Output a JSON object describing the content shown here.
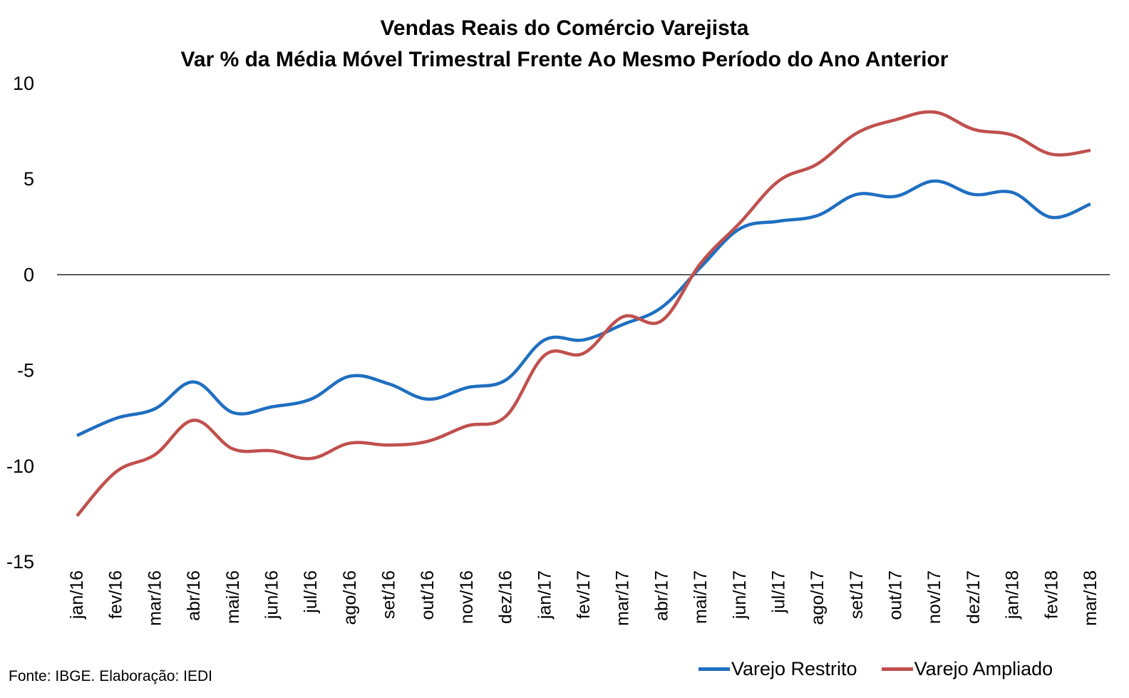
{
  "chart_data": {
    "type": "line",
    "title": "Vendas Reais do Comércio Varejista",
    "subtitle": "Var % da Média Móvel Trimestral Frente Ao Mesmo Período do Ano Anterior",
    "categories": [
      "jan/16",
      "fev/16",
      "mar/16",
      "abr/16",
      "mai/16",
      "jun/16",
      "jul/16",
      "ago/16",
      "set/16",
      "out/16",
      "nov/16",
      "dez/16",
      "jan/17",
      "fev/17",
      "mar/17",
      "abr/17",
      "mai/17",
      "jun/17",
      "jul/17",
      "ago/17",
      "set/17",
      "out/17",
      "nov/17",
      "dez/17",
      "jan/18",
      "fev/18",
      "mar/18"
    ],
    "series": [
      {
        "name": "Varejo Restrito",
        "color": "#1f6fc1",
        "values": [
          -8.4,
          -7.5,
          -7.0,
          -5.6,
          -7.2,
          -6.9,
          -6.5,
          -5.3,
          -5.7,
          -6.5,
          -5.9,
          -5.5,
          -3.4,
          -3.4,
          -2.6,
          -1.7,
          0.4,
          2.4,
          2.8,
          3.1,
          4.2,
          4.1,
          4.9,
          4.2,
          4.3,
          3.0,
          3.7
        ]
      },
      {
        "name": "Varejo Ampliado",
        "color": "#c0504d",
        "values": [
          -12.6,
          -10.3,
          -9.4,
          -7.6,
          -9.1,
          -9.2,
          -9.6,
          -8.8,
          -8.9,
          -8.7,
          -7.9,
          -7.4,
          -4.2,
          -4.1,
          -2.2,
          -2.4,
          0.6,
          2.7,
          4.9,
          5.8,
          7.4,
          8.1,
          8.5,
          7.6,
          7.3,
          6.3,
          6.5
        ]
      }
    ],
    "yticks": [
      "10",
      "5",
      "0",
      "-5",
      "-10",
      "-15"
    ],
    "ylim": [
      -15,
      10
    ],
    "grid": false,
    "legend": "bottom-right"
  },
  "source_note": "Fonte: IBGE. Elaboração: IEDI"
}
